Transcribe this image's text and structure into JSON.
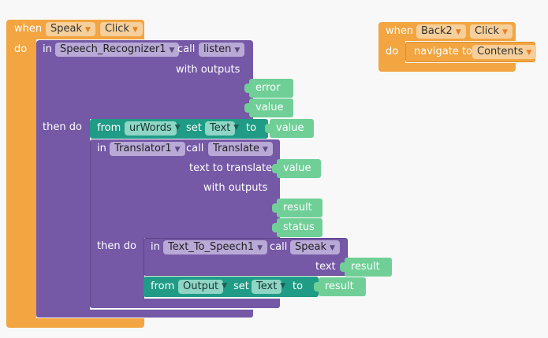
{
  "blocks": {
    "event1": {
      "when": "when",
      "component": "Speak",
      "event": "Click",
      "do": "do",
      "recognizer": {
        "in": "in",
        "component": "Speech_Recognizer1",
        "call": "call",
        "method": "listen",
        "with_outputs": "with outputs",
        "outputs": [
          "error",
          "value"
        ],
        "then_do": "then do",
        "set1": {
          "from": "from",
          "component": "urWords",
          "set": "set",
          "property": "Text",
          "to": "to",
          "value": "value"
        },
        "translator": {
          "in": "in",
          "component": "Translator1",
          "call": "call",
          "method": "Translate",
          "text_to_translate": "text to translate",
          "text_value": "value",
          "with_outputs": "with outputs",
          "outputs": [
            "result",
            "status"
          ],
          "then_do": "then do",
          "tts": {
            "in": "in",
            "component": "Text_To_Speech1",
            "call": "call",
            "method": "Speak",
            "text": "text",
            "text_value": "result"
          },
          "set2": {
            "from": "from",
            "component": "Output",
            "set": "set",
            "property": "Text",
            "to": "to",
            "value": "result"
          }
        }
      }
    },
    "event2": {
      "when": "when",
      "component": "Back2",
      "event": "Click",
      "do": "do",
      "navigate": {
        "label": "navigate to",
        "target": "Contents"
      }
    }
  }
}
